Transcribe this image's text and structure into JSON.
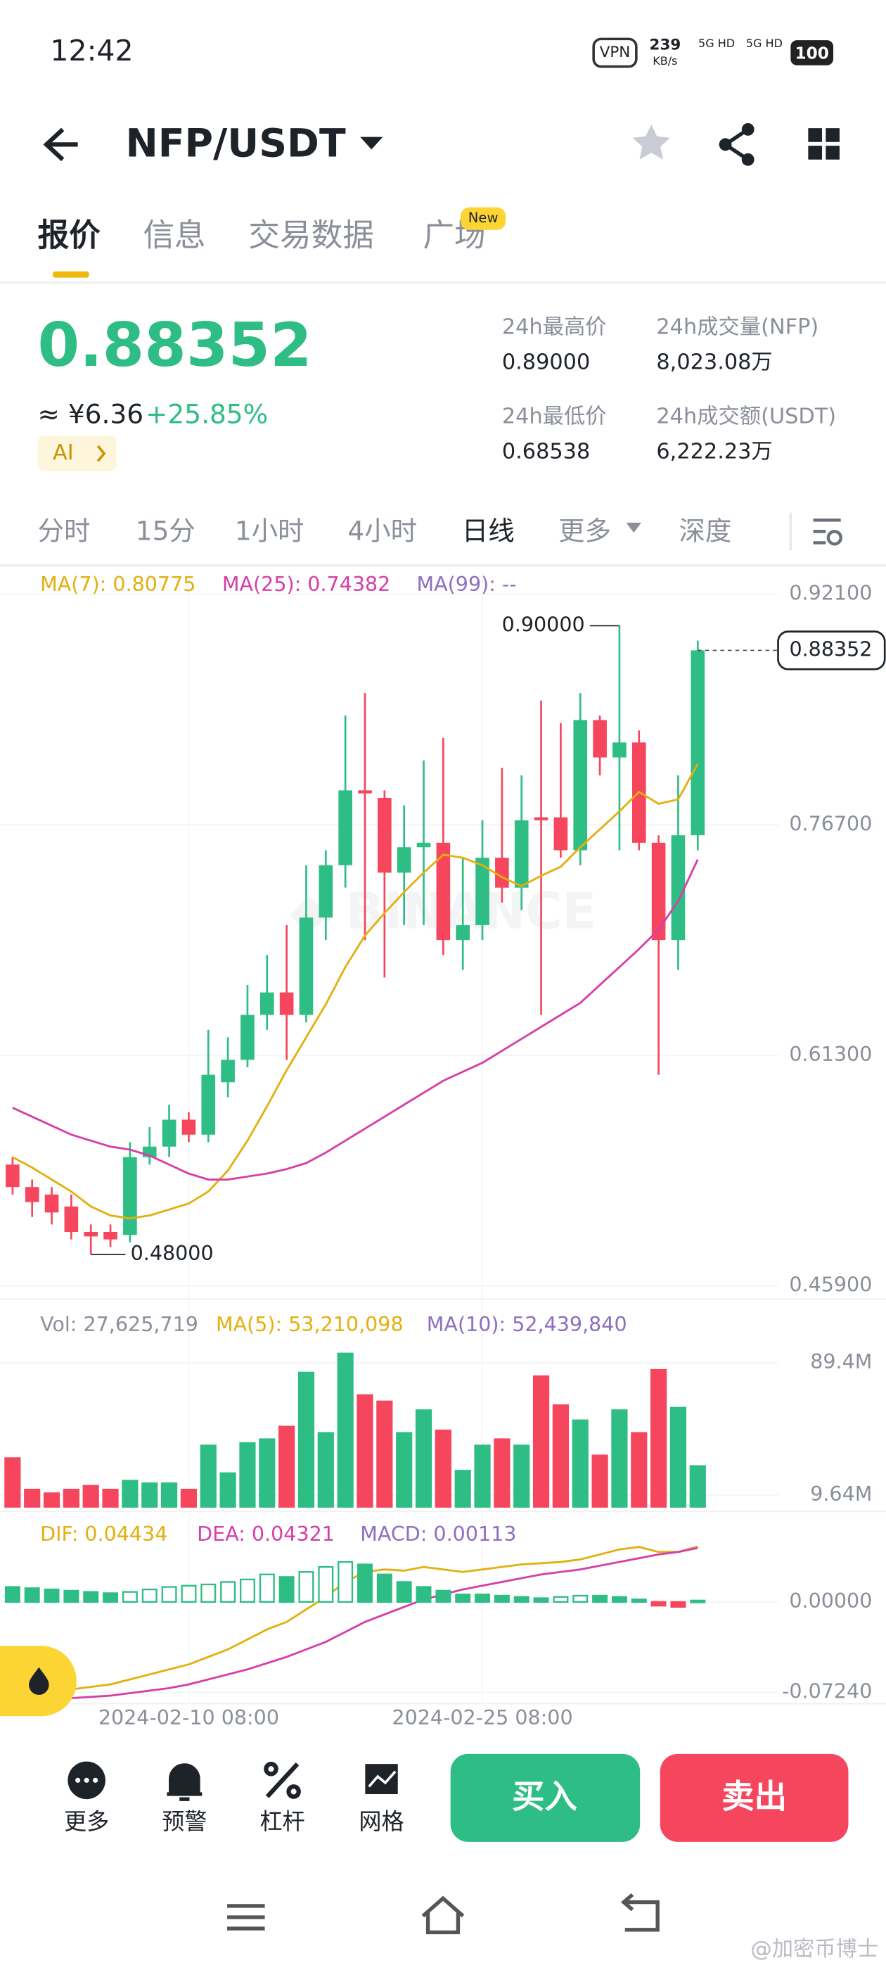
{
  "status": {
    "time": "12:42",
    "vpn": "VPN",
    "speed": "239",
    "speed_unit": "KB/s",
    "net1": "5G HD",
    "net2": "5G HD",
    "battery": "100"
  },
  "header": {
    "pair": "NFP/USDT"
  },
  "tabs": [
    "报价",
    "信息",
    "交易数据",
    "广场"
  ],
  "tab_badge": "New",
  "quote": {
    "price": "0.88352",
    "cny": "≈ ¥6.36",
    "change": "+25.85%",
    "ai": "AI",
    "stats": [
      {
        "label": "24h最高价",
        "value": "0.89000"
      },
      {
        "label": "24h成交量(NFP)",
        "value": "8,023.08万"
      },
      {
        "label": "24h最低价",
        "value": "0.68538"
      },
      {
        "label": "24h成交额(USDT)",
        "value": "6,222.23万"
      }
    ]
  },
  "timeframes": [
    "分时",
    "15分",
    "1小时",
    "4小时",
    "日线",
    "更多",
    "深度"
  ],
  "chart_data": {
    "type": "candlestick",
    "up_color": "#2ebd85",
    "down_color": "#f6465d",
    "open": [
      0.54,
      0.525,
      0.52,
      0.512,
      0.495,
      0.495,
      0.493,
      0.545,
      0.552,
      0.57,
      0.56,
      0.595,
      0.61,
      0.64,
      0.655,
      0.64,
      0.705,
      0.74,
      0.79,
      0.785,
      0.735,
      0.752,
      0.755,
      0.69,
      0.7,
      0.745,
      0.725,
      0.772,
      0.772,
      0.75,
      0.837,
      0.812,
      0.822,
      0.755,
      0.69,
      0.76
    ],
    "high": [
      0.545,
      0.53,
      0.525,
      0.52,
      0.5,
      0.5,
      0.555,
      0.565,
      0.58,
      0.575,
      0.63,
      0.625,
      0.66,
      0.68,
      0.7,
      0.74,
      0.75,
      0.84,
      0.855,
      0.79,
      0.78,
      0.81,
      0.825,
      0.745,
      0.77,
      0.805,
      0.8,
      0.85,
      0.835,
      0.855,
      0.84,
      0.9,
      0.83,
      0.76,
      0.8,
      0.89
    ],
    "low": [
      0.52,
      0.505,
      0.5,
      0.49,
      0.48,
      0.485,
      0.488,
      0.54,
      0.545,
      0.555,
      0.555,
      0.585,
      0.605,
      0.63,
      0.61,
      0.635,
      0.69,
      0.725,
      0.69,
      0.665,
      0.7,
      0.7,
      0.68,
      0.67,
      0.69,
      0.715,
      0.71,
      0.64,
      0.745,
      0.74,
      0.8,
      0.75,
      0.75,
      0.6,
      0.67,
      0.75
    ],
    "close": [
      0.525,
      0.515,
      0.508,
      0.495,
      0.492,
      0.49,
      0.545,
      0.552,
      0.57,
      0.56,
      0.6,
      0.61,
      0.64,
      0.655,
      0.64,
      0.705,
      0.74,
      0.79,
      0.788,
      0.735,
      0.752,
      0.755,
      0.69,
      0.7,
      0.745,
      0.725,
      0.77,
      0.77,
      0.75,
      0.837,
      0.812,
      0.822,
      0.755,
      0.69,
      0.76,
      0.88352
    ],
    "ma": [
      {
        "name": "MA(7): 0.80775",
        "color": "#e3b00f",
        "values": [
          0.545,
          0.538,
          0.53,
          0.522,
          0.512,
          0.506,
          0.504,
          0.506,
          0.51,
          0.514,
          0.522,
          0.536,
          0.556,
          0.579,
          0.603,
          0.625,
          0.647,
          0.672,
          0.693,
          0.708,
          0.722,
          0.735,
          0.747,
          0.745,
          0.74,
          0.732,
          0.726,
          0.733,
          0.739,
          0.752,
          0.764,
          0.776,
          0.789,
          0.781,
          0.784,
          0.80775
        ]
      },
      {
        "name": "MA(25): 0.74382",
        "color": "#d63fa8",
        "values": [
          0.578,
          0.572,
          0.566,
          0.56,
          0.556,
          0.552,
          0.55,
          0.546,
          0.54,
          0.534,
          0.53,
          0.53,
          0.532,
          0.534,
          0.537,
          0.541,
          0.548,
          0.556,
          0.564,
          0.572,
          0.58,
          0.588,
          0.596,
          0.602,
          0.608,
          0.616,
          0.624,
          0.632,
          0.64,
          0.648,
          0.66,
          0.672,
          0.684,
          0.697,
          0.716,
          0.74382
        ]
      },
      {
        "name": "MA(99): --",
        "color": "#8e6fbf"
      }
    ],
    "ylim": [
      0.4535,
      0.9336
    ],
    "yticks": [
      {
        "value": 0.921,
        "label": "0.92100"
      },
      {
        "value": 0.767,
        "label": "0.76700"
      },
      {
        "value": 0.613,
        "label": "0.61300"
      },
      {
        "value": 0.459,
        "label": "0.45900"
      }
    ],
    "max_label": "0.90000",
    "min_label": "0.48000",
    "last_label": "0.88352",
    "xtick_labels": [
      {
        "index": 9,
        "label": "2024-02-10 08:00"
      },
      {
        "index": 24,
        "label": "2024-02-25 08:00"
      }
    ],
    "volume": {
      "series": [
        {
          "name": "Vol: 27,625,719",
          "color": "#8a8f99"
        },
        {
          "name": "MA(5): 53,210,098",
          "color": "#e3b00f"
        },
        {
          "name": "MA(10): 52,439,840",
          "color": "#8e6fbf"
        }
      ],
      "values": [
        32.4,
        13.4,
        11.2,
        13.4,
        15.7,
        13.4,
        18.8,
        17.2,
        17.2,
        13.4,
        40,
        23.3,
        41.5,
        43.8,
        51.4,
        84,
        47.6,
        95.5,
        70.4,
        66.6,
        47.6,
        61.3,
        49.1,
        24.8,
        40,
        43.8,
        40,
        81.8,
        64.3,
        55.2,
        34,
        61.3,
        47.6,
        85.6,
        62.8,
        27.6
      ],
      "ylim": [
        2,
        121
      ],
      "yticks": [
        {
          "value": 89.4,
          "label": "89.4M"
        },
        {
          "value": 9.64,
          "label": "9.64M"
        }
      ]
    },
    "macd": {
      "series": [
        {
          "name": "DIF: 0.04434",
          "color": "#e3b00f",
          "values": [
            -0.075,
            -0.074,
            -0.072,
            -0.07,
            -0.068,
            -0.066,
            -0.062,
            -0.058,
            -0.054,
            -0.05,
            -0.044,
            -0.038,
            -0.03,
            -0.022,
            -0.016,
            -0.006,
            0.004,
            0.016,
            0.024,
            0.026,
            0.025,
            0.028,
            0.026,
            0.024,
            0.026,
            0.028,
            0.03,
            0.031,
            0.032,
            0.034,
            0.038,
            0.042,
            0.044,
            0.04,
            0.04,
            0.04434
          ]
        },
        {
          "name": "DEA: 0.04321",
          "color": "#d63fa8",
          "values": [
            -0.08,
            -0.079,
            -0.078,
            -0.077,
            -0.076,
            -0.075,
            -0.073,
            -0.071,
            -0.069,
            -0.066,
            -0.062,
            -0.058,
            -0.054,
            -0.049,
            -0.044,
            -0.038,
            -0.032,
            -0.024,
            -0.016,
            -0.01,
            -0.004,
            0.002,
            0.006,
            0.01,
            0.013,
            0.016,
            0.019,
            0.022,
            0.024,
            0.026,
            0.029,
            0.032,
            0.035,
            0.038,
            0.04,
            0.04321
          ]
        },
        {
          "name": "MACD: 0.00113",
          "color": "#8e6fbf"
        }
      ],
      "hist": [
        0.012,
        0.011,
        0.01,
        0.009,
        0.008,
        0.007,
        0.008,
        0.01,
        0.012,
        0.013,
        0.014,
        0.016,
        0.018,
        0.022,
        0.02,
        0.024,
        0.028,
        0.032,
        0.03,
        0.022,
        0.016,
        0.012,
        0.009,
        0.006,
        0.006,
        0.005,
        0.004,
        0.003,
        0.004,
        0.005,
        0.005,
        0.004,
        0.002,
        -0.003,
        -0.004,
        0.00113
      ],
      "ylim": [
        -0.0804,
        0.0654
      ],
      "yticks": [
        {
          "value": 0,
          "label": "0.00000"
        },
        {
          "value": -0.0724,
          "label": "-0.07240"
        }
      ]
    }
  },
  "toolbar": [
    "更多",
    "预警",
    "杠杆",
    "网格"
  ],
  "buy": "买入",
  "sell": "卖出",
  "watermark": "@加密币博士"
}
